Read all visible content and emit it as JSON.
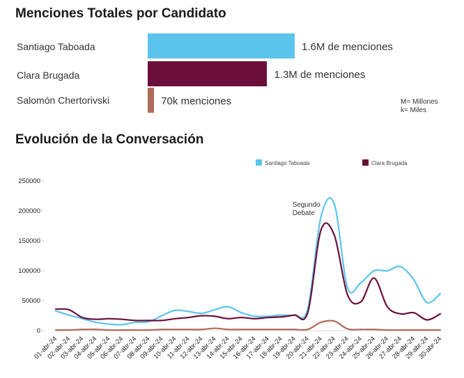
{
  "bar_section": {
    "title": "Menciones Totales por Candidato",
    "note_m": "M= Millones",
    "note_k": "k= Miles"
  },
  "line_section": {
    "title": "Evolución de la Conversación"
  },
  "colors": {
    "santiago": "#5bc4ec",
    "clara": "#6b0f3a",
    "salomon": "#b06a5a"
  },
  "chart_data": [
    {
      "type": "bar",
      "orientation": "horizontal",
      "title": "Menciones Totales por Candidato",
      "categories": [
        "Santiago Taboada",
        "Clara Brugada",
        "Salomón Chertorivski"
      ],
      "values": [
        1600000,
        1300000,
        70000
      ],
      "labels": [
        "1.6M de menciones",
        "1.3M de menciones",
        "70k menciones"
      ]
    },
    {
      "type": "line",
      "title": "Evolución de la Conversación",
      "x": [
        "01-abr-24",
        "02-abr-24",
        "03-abr-24",
        "04-abr-24",
        "05-abr-24",
        "06-abr-24",
        "07-abr-24",
        "08-abr-24",
        "09-abr-24",
        "10-abr-24",
        "11-abr-24",
        "12-abr-24",
        "13-abr-24",
        "14-abr-24",
        "15-abr-24",
        "16-abr-24",
        "17-abr-24",
        "18-abr-24",
        "19-abr-24",
        "20-abr-24",
        "21-abr-24",
        "22-abr-24",
        "23-abr-24",
        "24-abr-24",
        "25-abr-24",
        "26-abr-24",
        "27-abr-24",
        "28-abr-24",
        "29-abr-24",
        "30-abr-24"
      ],
      "series": [
        {
          "name": "Santiago Taboada",
          "values": [
            33000,
            26000,
            20000,
            14000,
            11000,
            10000,
            14000,
            15000,
            25000,
            34000,
            32000,
            29000,
            35000,
            40000,
            30000,
            24000,
            24000,
            26000,
            26000,
            36000,
            190000,
            212000,
            72000,
            80000,
            100000,
            100000,
            107000,
            85000,
            47000,
            62000
          ]
        },
        {
          "name": "Clara Brugada",
          "values": [
            36000,
            35000,
            22000,
            19000,
            20000,
            19000,
            17000,
            17000,
            17000,
            20000,
            22000,
            25000,
            24000,
            20000,
            22000,
            20000,
            22000,
            23000,
            26000,
            30000,
            168000,
            160000,
            60000,
            48000,
            88000,
            40000,
            28000,
            30000,
            18000,
            28000
          ]
        },
        {
          "name": "Salomón Chertorivski",
          "values": [
            1000,
            1000,
            2000,
            2000,
            1000,
            1000,
            1000,
            1000,
            2000,
            2000,
            2000,
            2000,
            4000,
            2000,
            2000,
            2000,
            2000,
            2000,
            2000,
            2000,
            14000,
            16000,
            3000,
            2000,
            2000,
            1000,
            1000,
            1000,
            1000,
            1000
          ]
        }
      ],
      "legend": [
        "Santiago Taboada",
        "Clara Brugada"
      ],
      "legend_position": "top-right",
      "yticks": [
        0,
        50000,
        100000,
        150000,
        200000,
        250000
      ],
      "ylim": [
        0,
        250000
      ],
      "annotation": {
        "line1": "Segundo",
        "line2": "Debate",
        "x": "21-abr-24"
      }
    }
  ]
}
